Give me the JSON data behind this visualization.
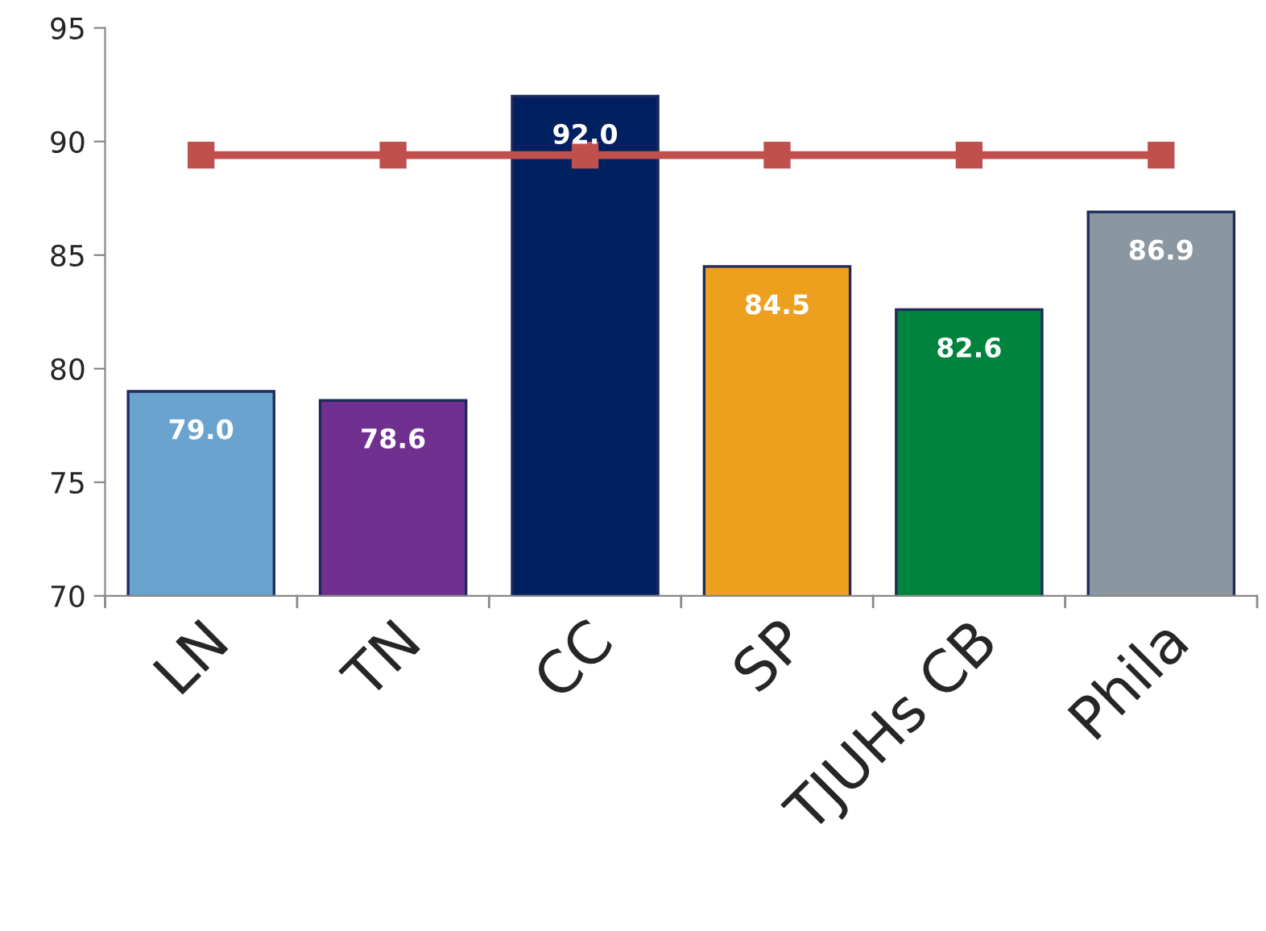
{
  "chart_data": {
    "type": "bar",
    "categories": [
      "LN",
      "TN",
      "CC",
      "SP",
      "TJUHs CB",
      "Phila"
    ],
    "series": [
      {
        "colors": [
          "#6aa3cd",
          "#70308f",
          "#002060",
          "#eda01e",
          "#00843d",
          "#8a97a1"
        ],
        "values": [
          79.0,
          78.6,
          92.0,
          84.5,
          82.6,
          86.9
        ],
        "value_labels": [
          "79.0",
          "78.6",
          "92.0",
          "84.5",
          "82.6",
          "86.9"
        ]
      },
      {
        "type": "line",
        "color": "#c0504d",
        "marker": "square",
        "values": [
          89.4,
          89.4,
          89.4,
          89.4,
          89.4,
          89.4
        ]
      }
    ],
    "ylim": [
      70,
      95
    ],
    "yticks": [
      70,
      75,
      80,
      85,
      90,
      95
    ],
    "grid": false,
    "legend": false
  }
}
